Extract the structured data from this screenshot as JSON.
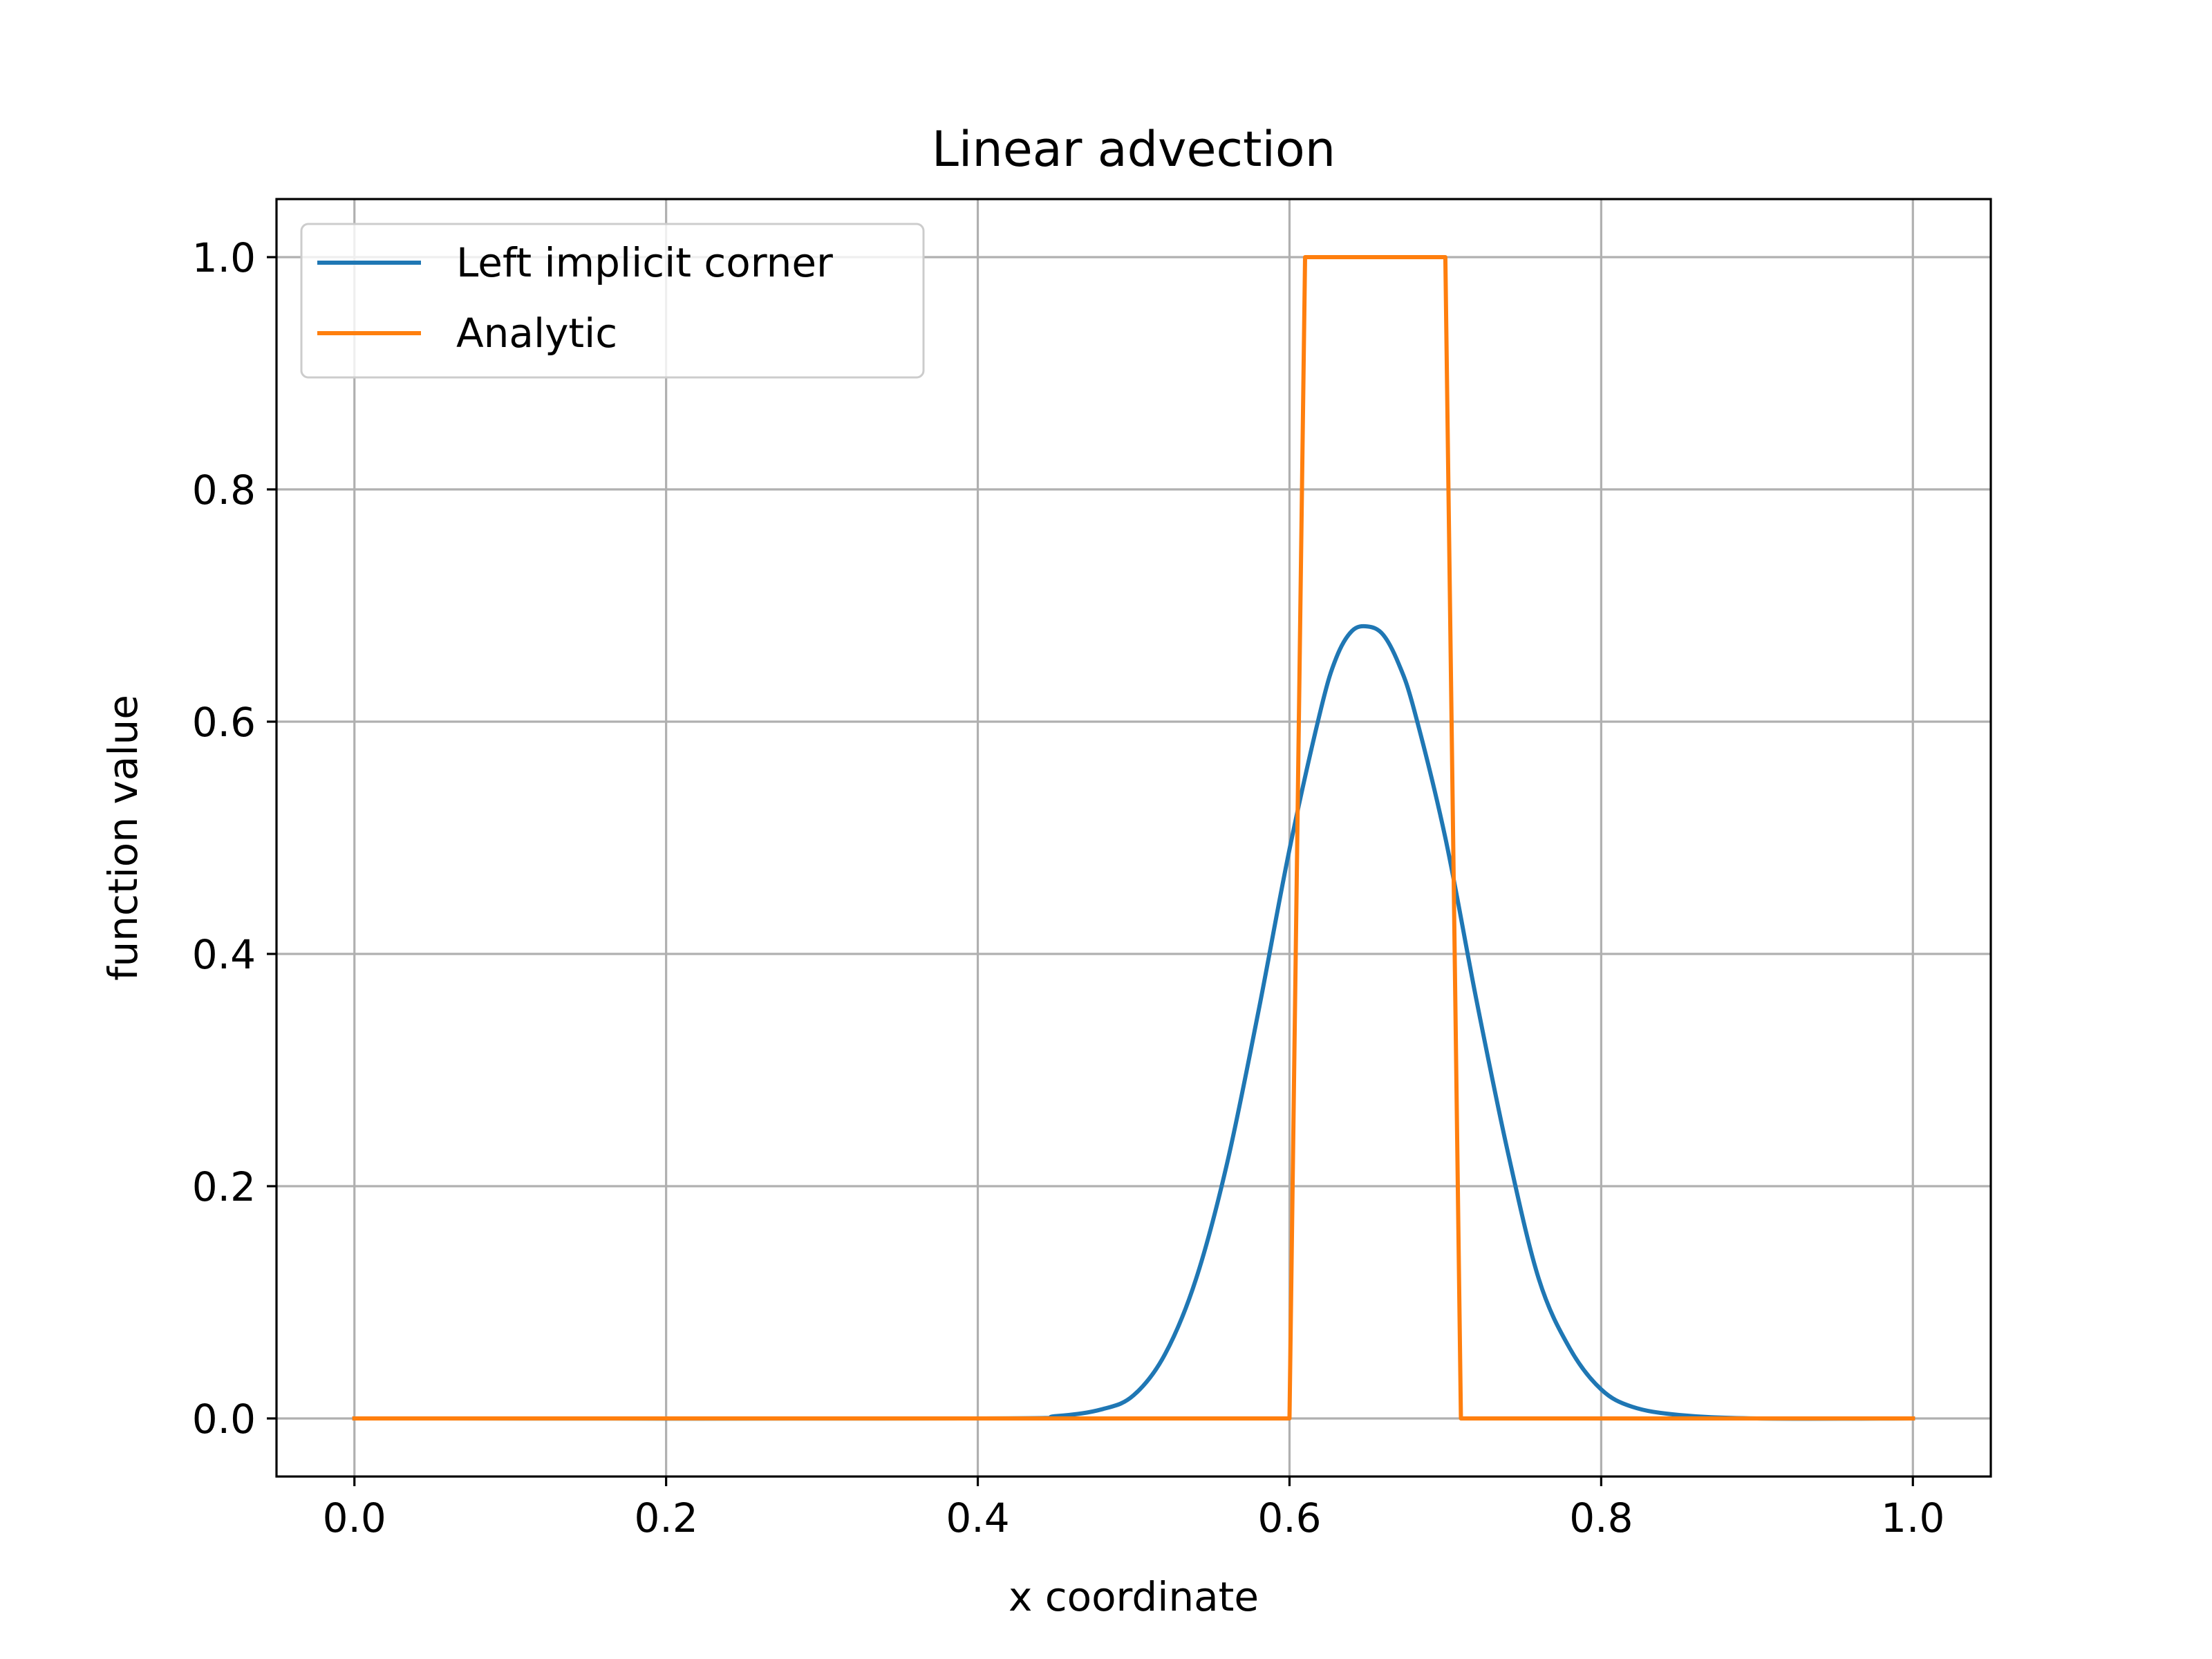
{
  "chart_data": {
    "type": "line",
    "title": "Linear advection",
    "xlabel": "x coordinate",
    "ylabel": "function value",
    "xlim": [
      -0.05,
      1.05
    ],
    "ylim": [
      -0.05,
      1.05
    ],
    "xticks": [
      0.0,
      0.2,
      0.4,
      0.6,
      0.8,
      1.0
    ],
    "xtick_labels": [
      "0.0",
      "0.2",
      "0.4",
      "0.6",
      "0.8",
      "1.0"
    ],
    "yticks": [
      0.0,
      0.2,
      0.4,
      0.6,
      0.8,
      1.0
    ],
    "ytick_labels": [
      "0.0",
      "0.2",
      "0.4",
      "0.6",
      "0.8",
      "1.0"
    ],
    "grid": true,
    "legend_location": "top-left",
    "series": [
      {
        "name": "Left implicit corner",
        "color": "#1f77b4",
        "x": [
          0.0,
          0.4,
          0.45,
          0.48,
          0.5,
          0.52,
          0.54,
          0.56,
          0.58,
          0.6,
          0.62,
          0.63,
          0.64,
          0.65,
          0.66,
          0.67,
          0.68,
          0.7,
          0.72,
          0.74,
          0.76,
          0.78,
          0.8,
          0.82,
          0.85,
          0.9,
          1.0
        ],
        "values": [
          0.0,
          0.0,
          0.002,
          0.008,
          0.02,
          0.055,
          0.12,
          0.22,
          0.35,
          0.49,
          0.61,
          0.655,
          0.678,
          0.682,
          0.675,
          0.65,
          0.61,
          0.5,
          0.36,
          0.23,
          0.12,
          0.06,
          0.025,
          0.01,
          0.003,
          0.0,
          0.0
        ]
      },
      {
        "name": "Analytic",
        "color": "#ff7f0e",
        "x": [
          0.0,
          0.6,
          0.61,
          0.7,
          0.71,
          1.0
        ],
        "values": [
          0.0,
          0.0,
          1.0,
          1.0,
          0.0,
          0.0
        ]
      }
    ]
  }
}
